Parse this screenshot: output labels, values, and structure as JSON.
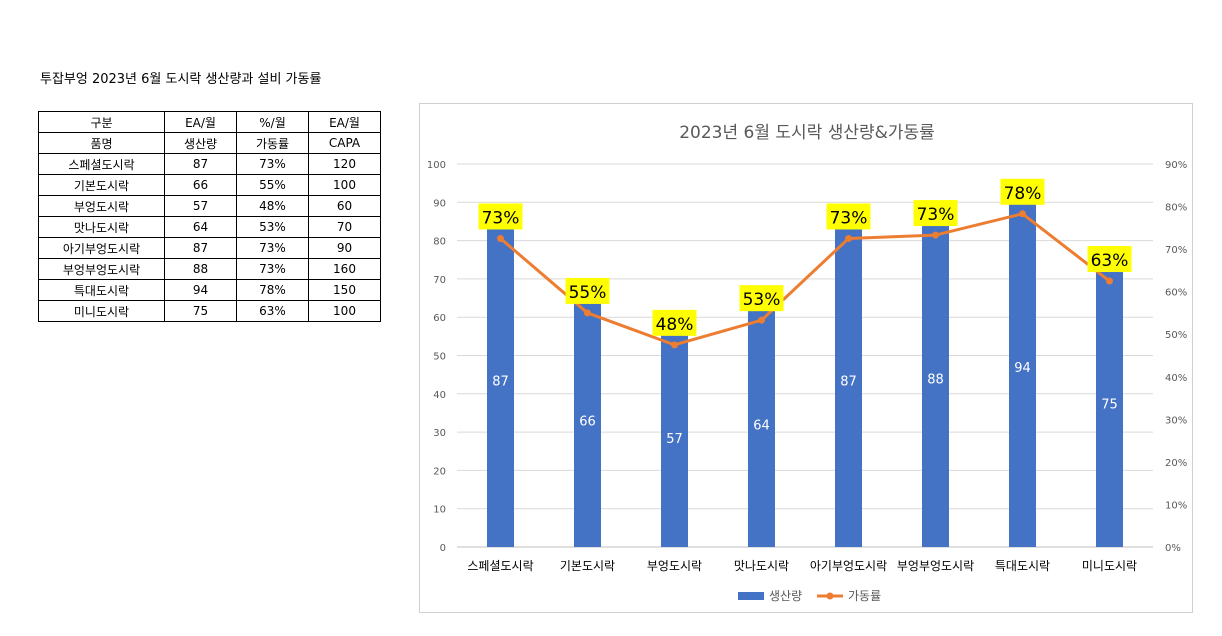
{
  "report": {
    "title": "투잡부엉 2023년 6월 도시락 생산량과 설비 가동률"
  },
  "table": {
    "header_rows": [
      [
        "구분",
        "EA/월",
        "%/월",
        "EA/월"
      ],
      [
        "품명",
        "생산량",
        "가동률",
        "CAPA"
      ]
    ],
    "rows": [
      [
        "스페셜도시락",
        "87",
        "73%",
        "120"
      ],
      [
        "기본도시락",
        "66",
        "55%",
        "100"
      ],
      [
        "부엉도시락",
        "57",
        "48%",
        "60"
      ],
      [
        "맛나도시락",
        "64",
        "53%",
        "70"
      ],
      [
        "아기부엉도시락",
        "87",
        "73%",
        "90"
      ],
      [
        "부엉부엉도시락",
        "88",
        "73%",
        "160"
      ],
      [
        "특대도시락",
        "94",
        "78%",
        "150"
      ],
      [
        "미니도시락",
        "75",
        "63%",
        "100"
      ]
    ]
  },
  "chart_data": {
    "type": "bar",
    "title": "2023년 6월 도시락 생산량&가동률",
    "categories": [
      "스페셜도시락",
      "기본도시락",
      "부엉도시락",
      "맛나도시락",
      "아기부엉도시락",
      "부엉부엉도시락",
      "특대도시락",
      "미니도시락"
    ],
    "series": [
      {
        "name": "생산량",
        "type": "bar",
        "axis": "left",
        "color": "#4472C4",
        "values": [
          87,
          66,
          57,
          64,
          87,
          88,
          94,
          75
        ],
        "labels": [
          "87",
          "66",
          "57",
          "64",
          "87",
          "88",
          "94",
          "75"
        ]
      },
      {
        "name": "가동률",
        "type": "line",
        "axis": "right",
        "color": "#ED7D31",
        "values": [
          0.725,
          0.55,
          0.475,
          0.533,
          0.725,
          0.733,
          0.783,
          0.625
        ],
        "labels": [
          "73%",
          "55%",
          "48%",
          "53%",
          "73%",
          "73%",
          "78%",
          "63%"
        ]
      }
    ],
    "ylim": [
      0,
      100
    ],
    "yticks": [
      "0",
      "10",
      "20",
      "30",
      "40",
      "50",
      "60",
      "70",
      "80",
      "90",
      "100"
    ],
    "y2lim": [
      0,
      0.9
    ],
    "y2ticks": [
      "0%",
      "10%",
      "20%",
      "30%",
      "40%",
      "50%",
      "60%",
      "70%",
      "80%",
      "90%"
    ],
    "label_highlight": "#FFFF00",
    "gridlines": true,
    "legend": "bottom"
  }
}
